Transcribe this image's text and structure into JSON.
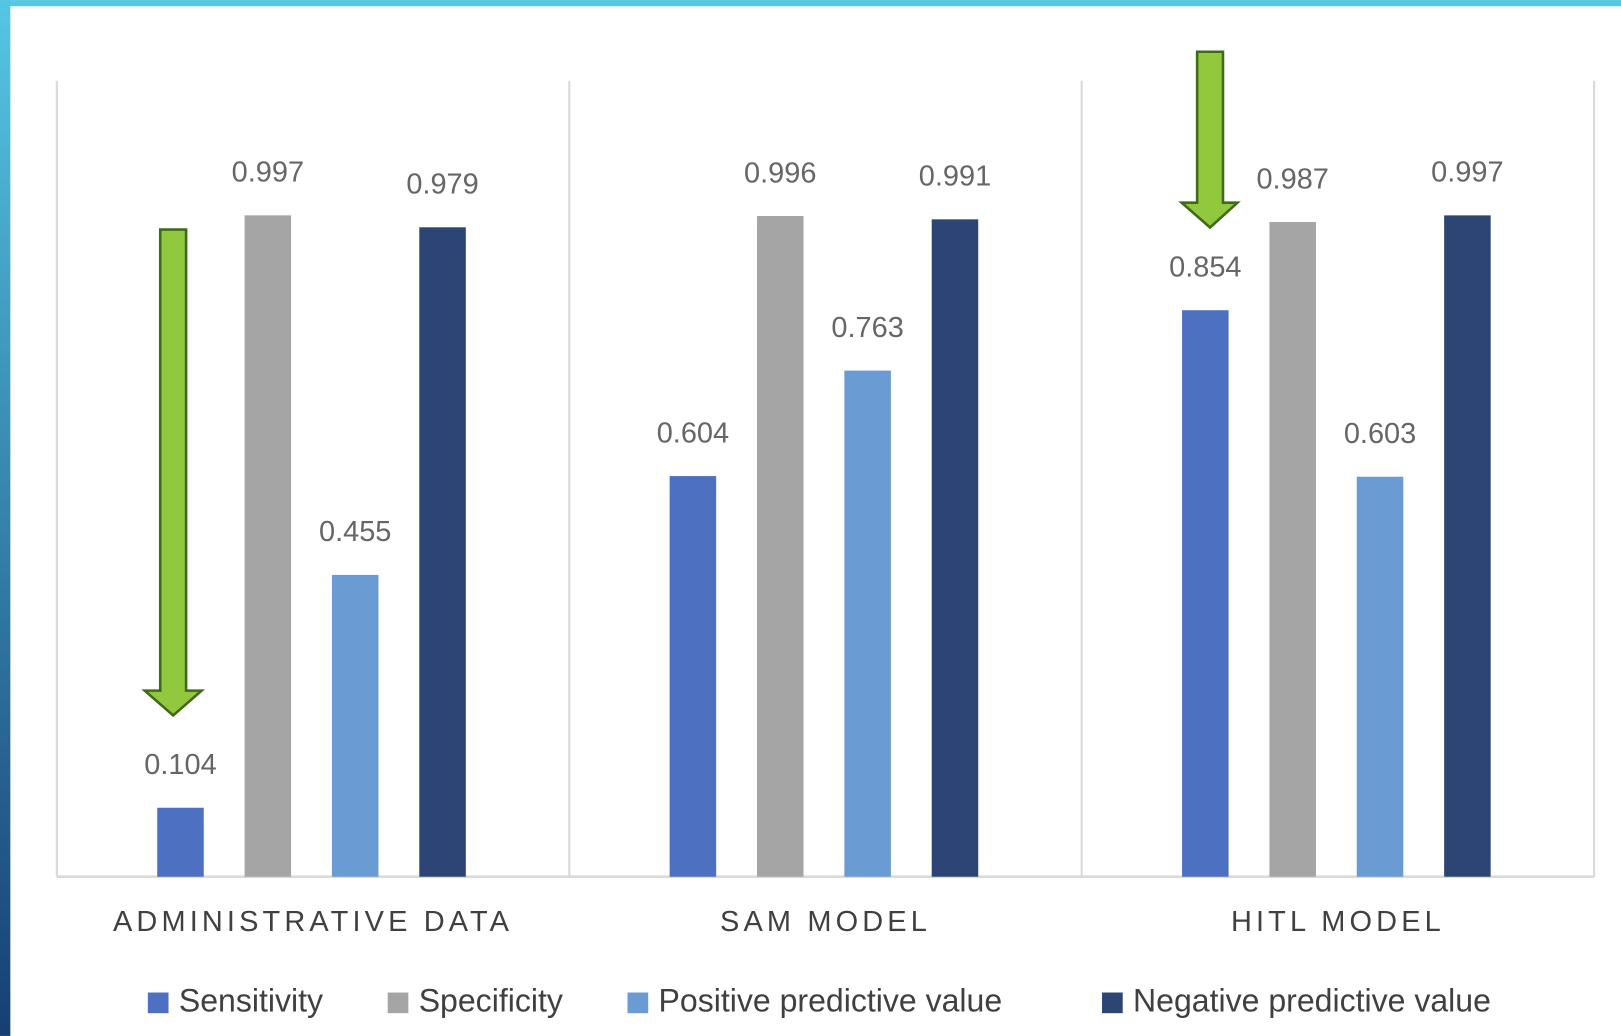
{
  "chart_data": {
    "type": "bar",
    "categories": [
      "ADMINISTRATIVE DATA",
      "SAM MODEL",
      "HITL MODEL"
    ],
    "series": [
      {
        "name": "Sensitivity",
        "color": "#4e70c1",
        "values": [
          0.104,
          0.604,
          0.854
        ]
      },
      {
        "name": "Specificity",
        "color": "#a5a5a5",
        "values": [
          0.997,
          0.996,
          0.987
        ]
      },
      {
        "name": "Positive predictive value",
        "color": "#6a9bd2",
        "values": [
          0.455,
          0.763,
          0.603
        ]
      },
      {
        "name": "Negative predictive value",
        "color": "#2c4574",
        "values": [
          0.979,
          0.991,
          0.997
        ]
      }
    ],
    "ylim": [
      0,
      1.2
    ],
    "legend": "bottom"
  }
}
